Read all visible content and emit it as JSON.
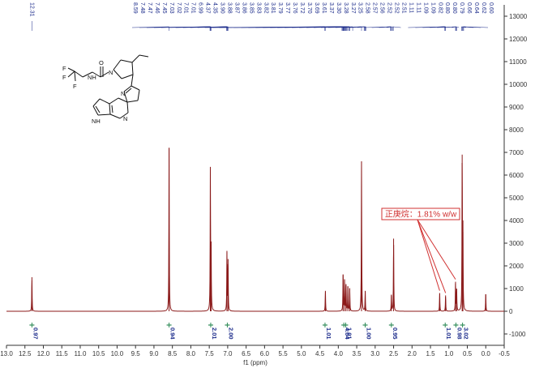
{
  "chart_data": {
    "type": "line",
    "title": "",
    "xlabel": "f1 (ppm)",
    "ylabel": "",
    "xlim": [
      13.0,
      -0.5
    ],
    "ylim": [
      -1500,
      13500
    ],
    "x_axis_reversed": true,
    "x_ticks": [
      "13.0",
      "12.5",
      "12.0",
      "11.5",
      "11.0",
      "10.5",
      "10.0",
      "9.5",
      "9.0",
      "8.5",
      "8.0",
      "7.5",
      "7.0",
      "6.5",
      "6.0",
      "5.5",
      "5.0",
      "4.5",
      "4.0",
      "3.5",
      "3.0",
      "2.5",
      "2.0",
      "1.5",
      "1.0",
      "0.5",
      "0.0",
      "-0.5"
    ],
    "y_ticks": [
      -1000,
      0,
      1000,
      2000,
      3000,
      4000,
      5000,
      6000,
      7000,
      8000,
      9000,
      10000,
      11000,
      12000,
      13000
    ],
    "grid": false,
    "peaks": [
      {
        "ppm": 12.31,
        "height": 1500
      },
      {
        "ppm": 8.59,
        "height": 7200
      },
      {
        "ppm": 7.47,
        "height": 6200
      },
      {
        "ppm": 7.45,
        "height": 2900
      },
      {
        "ppm": 7.02,
        "height": 2600
      },
      {
        "ppm": 6.99,
        "height": 2300
      },
      {
        "ppm": 4.35,
        "height": 900
      },
      {
        "ppm": 3.87,
        "height": 1600
      },
      {
        "ppm": 3.83,
        "height": 1400
      },
      {
        "ppm": 3.79,
        "height": 1200
      },
      {
        "ppm": 3.74,
        "height": 1100
      },
      {
        "ppm": 3.69,
        "height": 1000
      },
      {
        "ppm": 3.37,
        "height": 6600
      },
      {
        "ppm": 3.27,
        "height": 900
      },
      {
        "ppm": 2.56,
        "height": 700
      },
      {
        "ppm": 2.5,
        "height": 3200
      },
      {
        "ppm": 1.25,
        "height": 800
      },
      {
        "ppm": 1.09,
        "height": 700
      },
      {
        "ppm": 0.82,
        "height": 1300
      },
      {
        "ppm": 0.79,
        "height": 1000
      },
      {
        "ppm": 0.64,
        "height": 6900
      },
      {
        "ppm": 0.62,
        "height": 3500
      },
      {
        "ppm": 0.0,
        "height": 750
      }
    ],
    "peak_labels_left": [
      "12.31"
    ],
    "peak_labels": [
      "8.59",
      "7.48",
      "7.47",
      "7.46",
      "7.45",
      "7.03",
      "7.02",
      "7.01",
      "7.01",
      "6.99",
      "4.37",
      "4.35",
      "3.90",
      "3.88",
      "3.87",
      "3.86",
      "3.85",
      "3.83",
      "3.82",
      "3.81",
      "3.79",
      "3.77",
      "3.76",
      "3.72",
      "3.70",
      "3.69",
      "3.61",
      "3.37",
      "3.30",
      "3.28",
      "3.27",
      "3.25",
      "2.58",
      "2.57",
      "2.56",
      "2.52",
      "2.52",
      "2.51",
      "1.11",
      "1.11",
      "1.09",
      "1.09",
      "0.82",
      "0.80",
      "0.80",
      "0.79",
      "0.66",
      "0.64",
      "0.62",
      "0.60"
    ],
    "integrals": [
      {
        "ppm": 12.31,
        "label": "0.97"
      },
      {
        "ppm": 8.59,
        "label": "0.94"
      },
      {
        "ppm": 7.46,
        "label": "2.01"
      },
      {
        "ppm": 7.01,
        "label": "2.00"
      },
      {
        "ppm": 4.36,
        "label": "1.01"
      },
      {
        "ppm": 3.85,
        "label": "4.04"
      },
      {
        "ppm": 3.8,
        "label": "1.01"
      },
      {
        "ppm": 3.27,
        "label": "1.00"
      },
      {
        "ppm": 2.56,
        "label": "0.95"
      },
      {
        "ppm": 1.1,
        "label": "1.01"
      },
      {
        "ppm": 0.81,
        "label": "0.98"
      },
      {
        "ppm": 0.63,
        "label": "3.02"
      }
    ],
    "annotation": {
      "text": "正庚烷：1.81% w/w",
      "color": "#d03030",
      "target_ppm": [
        1.25,
        1.09,
        0.82
      ]
    },
    "colors": {
      "spectrum": "#8b1a1a",
      "labels": "#1a2a8a",
      "annotation": "#d03030",
      "integral": "#2e8b57"
    }
  },
  "molecule": {
    "atoms": {
      "nitrogen": "N",
      "oxygen": "O",
      "fluorine": "F",
      "amide": "NH",
      "ring_nh": "NH"
    }
  }
}
